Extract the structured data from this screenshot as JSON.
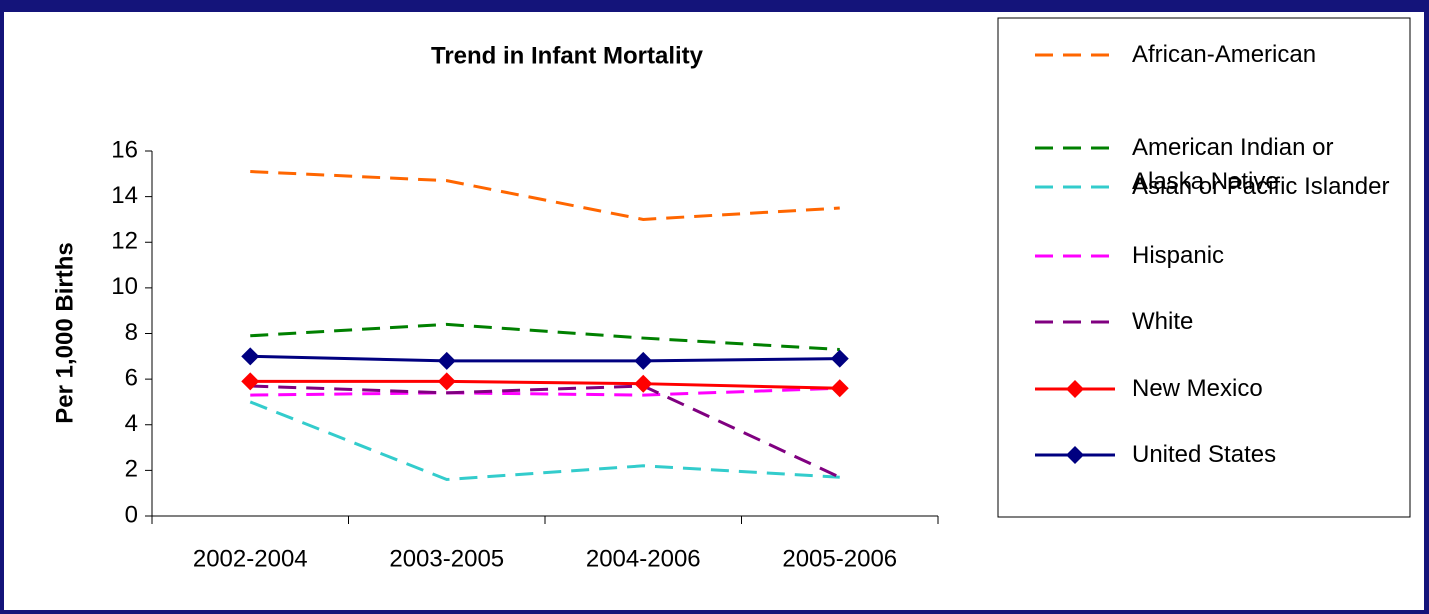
{
  "chart_data": {
    "type": "line",
    "title": "Trend in Infant Mortality",
    "y_label": "Per 1,000 Births",
    "categories": [
      "2002-2004",
      "2003-2005",
      "2004-2006",
      "2005-2006"
    ],
    "ylim": [
      0,
      16
    ],
    "yticks": [
      0,
      2,
      4,
      6,
      8,
      10,
      12,
      14,
      16
    ],
    "series": [
      {
        "name": "African-American",
        "color": "#ff6600",
        "dashed": true,
        "values": [
          15.1,
          14.7,
          13.0,
          13.5
        ]
      },
      {
        "name": "American Indian or Alaska Native",
        "color": "#008000",
        "dashed": true,
        "values": [
          7.9,
          8.4,
          7.8,
          7.3
        ]
      },
      {
        "name": "Asian or Pacific Islander",
        "color": "#33cccc",
        "dashed": true,
        "values": [
          5.0,
          1.6,
          2.2,
          1.7
        ]
      },
      {
        "name": "Hispanic",
        "color": "#ff00ff",
        "dashed": true,
        "values": [
          5.3,
          5.4,
          5.3,
          5.6
        ]
      },
      {
        "name": "White",
        "color": "#800080",
        "dashed": true,
        "values": [
          5.7,
          5.4,
          5.7,
          1.7
        ]
      },
      {
        "name": "New Mexico",
        "color": "#ff0000",
        "dashed": false,
        "marker": "diamond",
        "values": [
          5.9,
          5.9,
          5.8,
          5.6
        ]
      },
      {
        "name": "United States",
        "color": "#000080",
        "dashed": false,
        "marker": "diamond",
        "values": [
          7.0,
          6.8,
          6.8,
          6.9
        ]
      }
    ]
  }
}
